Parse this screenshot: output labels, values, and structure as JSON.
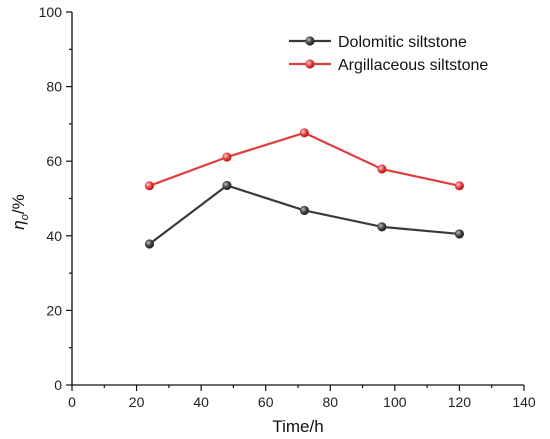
{
  "chart_data": {
    "type": "line",
    "title": "",
    "xlabel": "Time/h",
    "ylabel": "ηo/%",
    "xlim": [
      0,
      140
    ],
    "ylim": [
      0,
      100
    ],
    "xticks": [
      0,
      20,
      40,
      60,
      80,
      100,
      120,
      140
    ],
    "yticks": [
      0,
      20,
      40,
      60,
      80,
      100
    ],
    "x_minor_step": 10,
    "y_minor_step": 10,
    "grid": false,
    "legend_position": "top-right",
    "series": [
      {
        "name": "Dolomitic siltstone",
        "color": "#3a3a3a",
        "x": [
          24,
          48,
          72,
          96,
          120
        ],
        "y": [
          37.8,
          53.5,
          46.8,
          42.4,
          40.5
        ]
      },
      {
        "name": "Argillaceous siltstone",
        "color": "#e03c3c",
        "x": [
          24,
          48,
          72,
          96,
          120
        ],
        "y": [
          53.4,
          61.1,
          67.6,
          57.9,
          53.4
        ]
      }
    ]
  }
}
